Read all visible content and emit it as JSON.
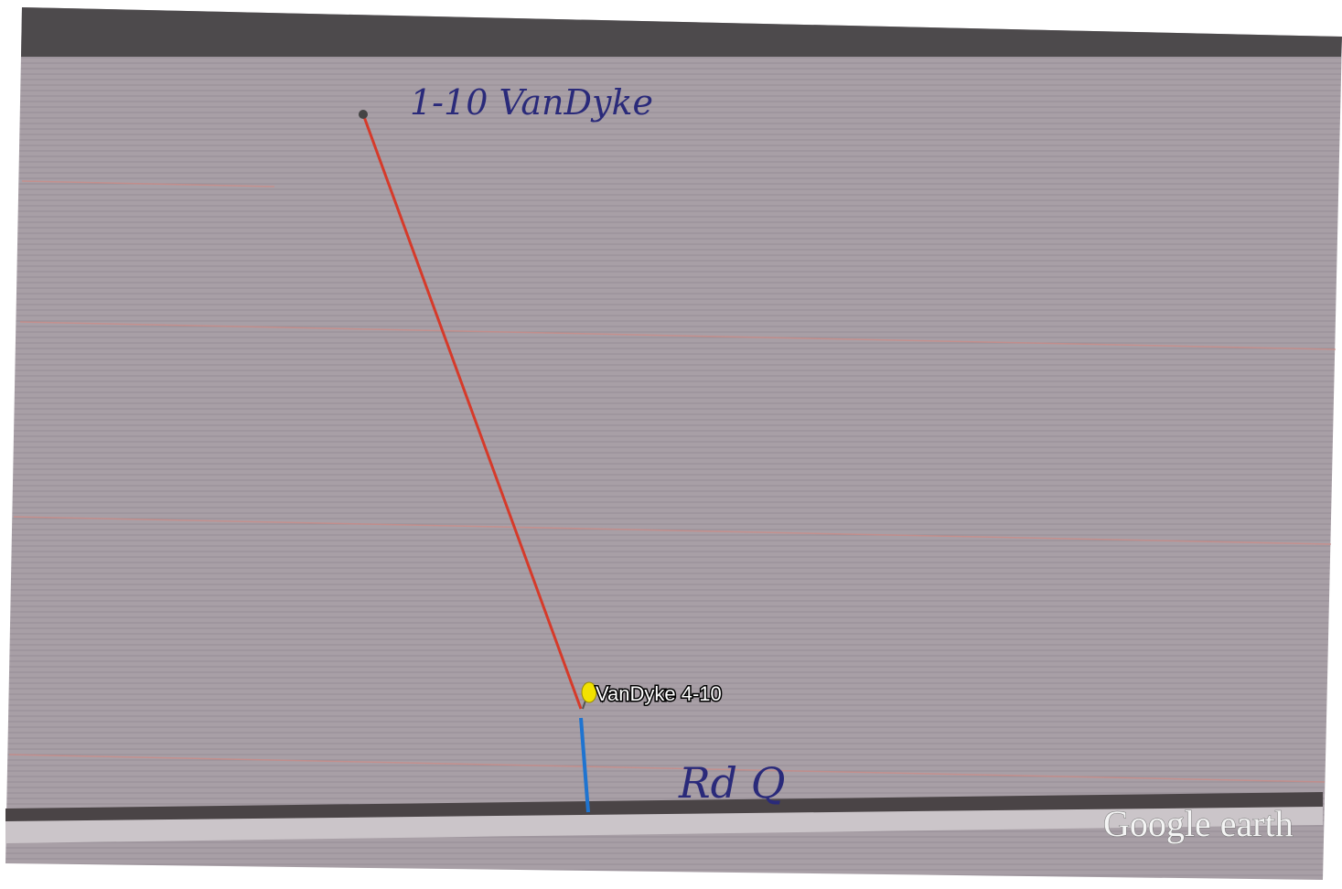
{
  "annotations": {
    "start_label": "1-10 VanDyke",
    "pin_label": "VanDyke 4-10",
    "road_label": "Rd Q"
  },
  "watermark": "Google earth"
}
